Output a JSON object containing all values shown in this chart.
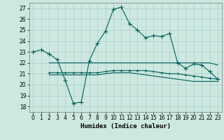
{
  "title": "",
  "xlabel": "Humidex (Indice chaleur)",
  "ylabel": "",
  "bg_color": "#cce8e0",
  "grid_color": "#aacfc8",
  "line_color": "#005f5a",
  "xlim": [
    -0.5,
    23.5
  ],
  "ylim": [
    17.5,
    27.5
  ],
  "yticks": [
    18,
    19,
    20,
    21,
    22,
    23,
    24,
    25,
    26,
    27
  ],
  "xticks": [
    0,
    1,
    2,
    3,
    4,
    5,
    6,
    7,
    8,
    9,
    10,
    11,
    12,
    13,
    14,
    15,
    16,
    17,
    18,
    19,
    20,
    21,
    22,
    23
  ],
  "main_x": [
    0,
    1,
    2,
    3,
    4,
    5,
    6,
    7,
    8,
    9,
    10,
    11,
    12,
    13,
    14,
    15,
    16,
    17,
    18,
    19,
    20,
    21,
    22,
    23
  ],
  "main_y": [
    23.0,
    23.2,
    22.8,
    22.3,
    20.4,
    18.3,
    18.4,
    22.2,
    23.8,
    24.9,
    26.9,
    27.1,
    25.6,
    25.0,
    24.3,
    24.5,
    24.4,
    24.7,
    22.0,
    21.5,
    21.9,
    21.8,
    21.2,
    20.5
  ],
  "line2_x": [
    2,
    3,
    4,
    5,
    6,
    7,
    8,
    9,
    10,
    11,
    12,
    13,
    14,
    15,
    16,
    17,
    18,
    19,
    20,
    21,
    22,
    23
  ],
  "line2_y": [
    22.0,
    22.0,
    22.0,
    22.0,
    22.0,
    22.0,
    22.0,
    22.0,
    22.0,
    22.0,
    22.0,
    22.0,
    22.0,
    22.0,
    22.0,
    22.0,
    22.0,
    22.0,
    22.0,
    22.0,
    22.0,
    21.8
  ],
  "line3_x": [
    2,
    3,
    4,
    5,
    6,
    7,
    8,
    9,
    10,
    11,
    12,
    13,
    14,
    15,
    16,
    17,
    18,
    19,
    20,
    21,
    22,
    23
  ],
  "line3_y": [
    21.1,
    21.1,
    21.1,
    21.1,
    21.1,
    21.1,
    21.1,
    21.2,
    21.3,
    21.3,
    21.3,
    21.3,
    21.3,
    21.2,
    21.1,
    21.0,
    21.0,
    20.9,
    20.8,
    20.7,
    20.6,
    20.5
  ],
  "line4_x": [
    2,
    3,
    4,
    5,
    6,
    7,
    8,
    9,
    10,
    11,
    12,
    13,
    14,
    15,
    16,
    17,
    18,
    19,
    20,
    21,
    22,
    23
  ],
  "line4_y": [
    20.9,
    20.9,
    20.9,
    20.9,
    20.9,
    20.9,
    20.9,
    21.0,
    21.1,
    21.1,
    21.1,
    21.0,
    20.9,
    20.8,
    20.7,
    20.6,
    20.5,
    20.4,
    20.3,
    20.3,
    20.3,
    20.3
  ],
  "marker_size": 2.5,
  "line_width": 0.8,
  "font_size_tick": 5.5,
  "font_size_label": 6.5
}
